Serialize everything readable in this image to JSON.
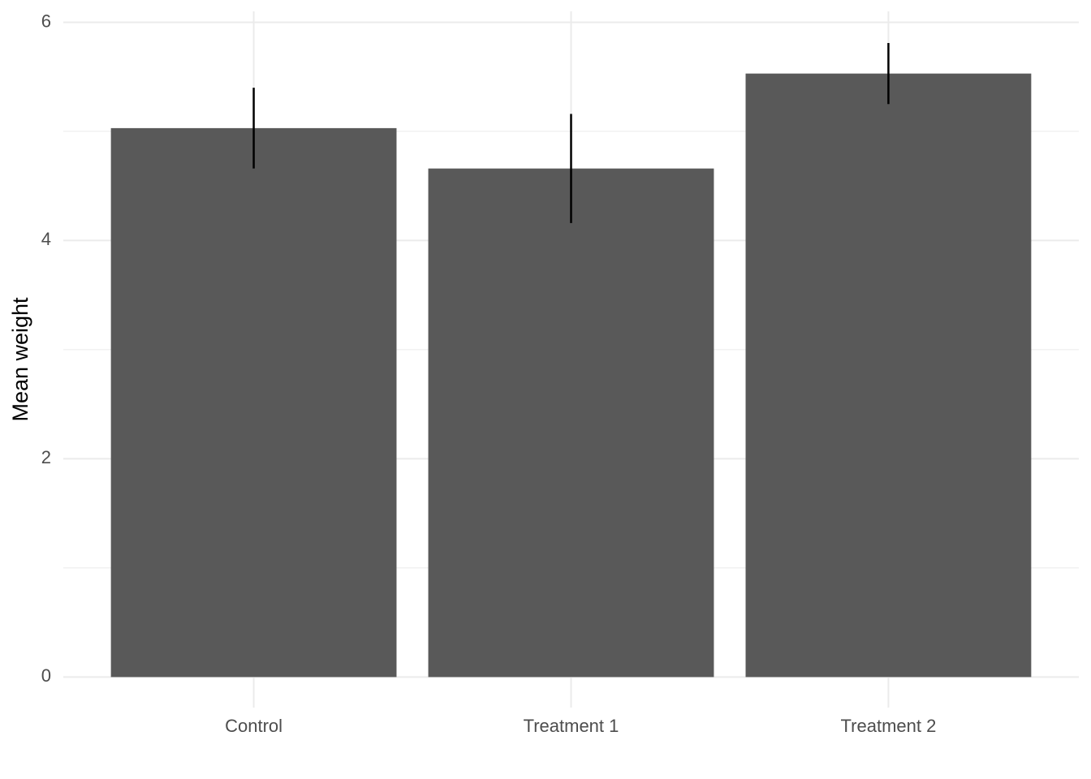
{
  "chart_data": {
    "type": "bar",
    "y_label": "Mean weight",
    "categories": [
      "Control",
      "Treatment 1",
      "Treatment 2"
    ],
    "values": [
      5.03,
      4.66,
      5.53
    ],
    "errors": [
      0.37,
      0.5,
      0.28
    ],
    "color": "#595959",
    "error_color": "#000000",
    "ylim": [
      -0.28,
      6.1
    ],
    "yticks": [
      0,
      2,
      4,
      6
    ],
    "minor_yticks": [
      1,
      3,
      5
    ],
    "grid": true
  }
}
